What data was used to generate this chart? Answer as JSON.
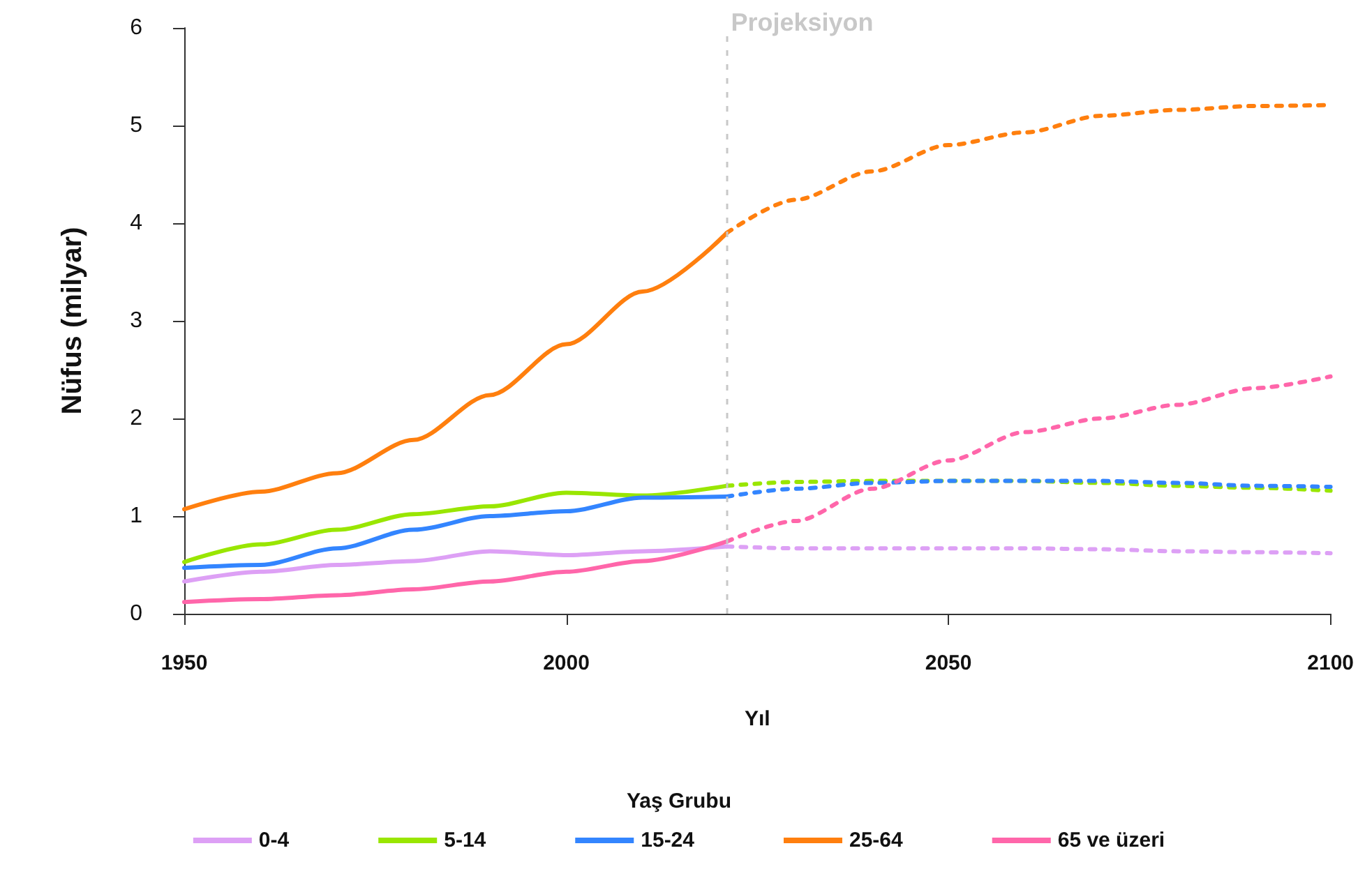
{
  "chart_data": {
    "type": "line",
    "xlabel": "Yıl",
    "ylabel": "Nüfus (milyar)",
    "legend_title": "Yaş Grubu",
    "xlim": [
      1950,
      2100
    ],
    "xticks": [
      1950,
      2000,
      2050,
      2100
    ],
    "ylim": [
      0,
      6
    ],
    "yticks": [
      0,
      1,
      2,
      3,
      4,
      5,
      6
    ],
    "grid": false,
    "legend": "bottom",
    "marker": "none",
    "series": [
      {
        "name": "0-4",
        "color": "#dda0f5",
        "line_style": "solid",
        "x": [
          1950,
          1960,
          1970,
          1980,
          1990,
          2000,
          2010,
          2021
        ],
        "values": [
          0.33,
          0.43,
          0.5,
          0.54,
          0.64,
          0.6,
          0.64,
          0.69
        ]
      },
      {
        "name": "5-14",
        "color": "#99e600",
        "line_style": "solid",
        "x": [
          1950,
          1960,
          1970,
          1980,
          1990,
          2000,
          2010,
          2021
        ],
        "values": [
          0.53,
          0.71,
          0.86,
          1.02,
          1.1,
          1.24,
          1.21,
          1.31
        ]
      },
      {
        "name": "15-24",
        "color": "#3385ff",
        "line_style": "solid",
        "x": [
          1950,
          1960,
          1970,
          1980,
          1990,
          2000,
          2010,
          2021
        ],
        "values": [
          0.47,
          0.5,
          0.67,
          0.86,
          1.0,
          1.05,
          1.19,
          1.2
        ]
      },
      {
        "name": "25-64",
        "color": "#ff7f0e",
        "line_style": "solid",
        "x": [
          1950,
          1960,
          1970,
          1980,
          1990,
          2000,
          2010,
          2021
        ],
        "values": [
          1.07,
          1.25,
          1.44,
          1.78,
          2.24,
          2.76,
          3.3,
          3.9
        ]
      },
      {
        "name": "65 ve üzeri",
        "color": "#ff66aa",
        "line_style": "solid",
        "x": [
          1950,
          1960,
          1970,
          1980,
          1990,
          2000,
          2010,
          2021
        ],
        "values": [
          0.12,
          0.15,
          0.19,
          0.25,
          0.33,
          0.43,
          0.54,
          0.74
        ]
      },
      {
        "color": "#dda0f5",
        "line_style": "dashed",
        "x": [
          2021,
          2030,
          2040,
          2050,
          2060,
          2070,
          2080,
          2090,
          2100
        ],
        "values": [
          0.69,
          0.67,
          0.67,
          0.67,
          0.67,
          0.66,
          0.64,
          0.63,
          0.62
        ]
      },
      {
        "color": "#99e600",
        "line_style": "dashed",
        "x": [
          2021,
          2030,
          2040,
          2050,
          2060,
          2070,
          2080,
          2090,
          2100
        ],
        "values": [
          1.31,
          1.35,
          1.36,
          1.36,
          1.36,
          1.34,
          1.31,
          1.29,
          1.26
        ]
      },
      {
        "color": "#3385ff",
        "line_style": "dashed",
        "x": [
          2021,
          2030,
          2040,
          2050,
          2060,
          2070,
          2080,
          2090,
          2100
        ],
        "values": [
          1.2,
          1.28,
          1.34,
          1.36,
          1.36,
          1.36,
          1.34,
          1.31,
          1.3
        ]
      },
      {
        "color": "#ff7f0e",
        "line_style": "dashed",
        "x": [
          2021,
          2030,
          2040,
          2050,
          2060,
          2070,
          2080,
          2090,
          2100
        ],
        "values": [
          3.9,
          4.24,
          4.53,
          4.8,
          4.93,
          5.1,
          5.16,
          5.2,
          5.21
        ]
      },
      {
        "color": "#ff66aa",
        "line_style": "dashed",
        "x": [
          2021,
          2030,
          2040,
          2050,
          2060,
          2070,
          2080,
          2090,
          2100
        ],
        "values": [
          0.74,
          0.95,
          1.28,
          1.57,
          1.86,
          2.0,
          2.14,
          2.31,
          2.43
        ]
      }
    ],
    "ref_lines": [
      {
        "axis": "x",
        "value": 2021,
        "label": "Projeksiyon",
        "color": "#c8c8c8",
        "line_style": "dashed"
      }
    ]
  }
}
